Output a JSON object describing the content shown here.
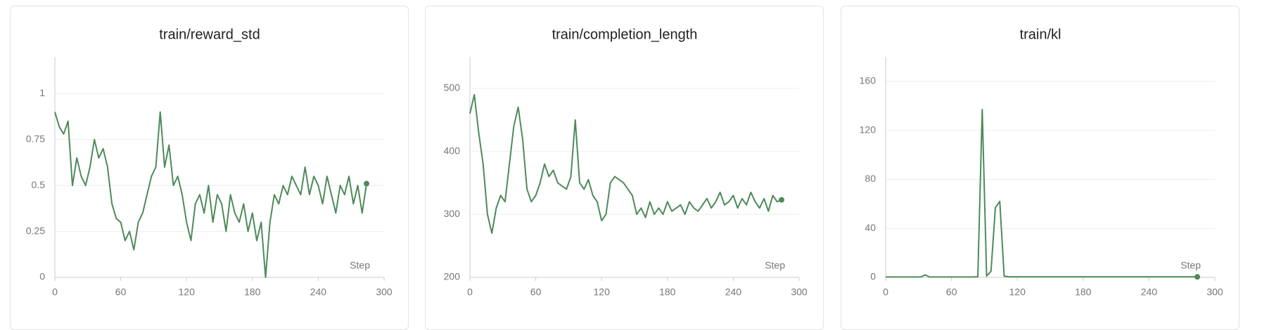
{
  "chart_data": [
    {
      "type": "line",
      "title": "train/reward_std",
      "x_label": "Step",
      "color": "#4e8a5a",
      "grid": true,
      "x": [
        0,
        4,
        8,
        12,
        16,
        20,
        24,
        28,
        32,
        36,
        40,
        44,
        48,
        52,
        56,
        60,
        64,
        68,
        72,
        76,
        80,
        84,
        88,
        92,
        96,
        100,
        104,
        108,
        112,
        116,
        120,
        124,
        128,
        132,
        136,
        140,
        144,
        148,
        152,
        156,
        160,
        164,
        168,
        172,
        176,
        180,
        184,
        188,
        192,
        196,
        200,
        204,
        208,
        212,
        216,
        220,
        224,
        228,
        232,
        236,
        240,
        244,
        248,
        252,
        256,
        260,
        264,
        268,
        272,
        276,
        280,
        284
      ],
      "values": [
        0.9,
        0.82,
        0.78,
        0.85,
        0.5,
        0.65,
        0.55,
        0.5,
        0.6,
        0.75,
        0.65,
        0.7,
        0.6,
        0.4,
        0.32,
        0.3,
        0.2,
        0.25,
        0.15,
        0.3,
        0.35,
        0.45,
        0.55,
        0.6,
        0.9,
        0.6,
        0.72,
        0.5,
        0.55,
        0.45,
        0.3,
        0.2,
        0.4,
        0.45,
        0.35,
        0.5,
        0.3,
        0.45,
        0.4,
        0.25,
        0.45,
        0.35,
        0.3,
        0.4,
        0.25,
        0.35,
        0.2,
        0.3,
        0,
        0.3,
        0.45,
        0.4,
        0.5,
        0.45,
        0.55,
        0.5,
        0.45,
        0.6,
        0.45,
        0.55,
        0.5,
        0.4,
        0.55,
        0.45,
        0.35,
        0.5,
        0.45,
        0.55,
        0.4,
        0.5,
        0.35,
        0.51
      ],
      "xlim": [
        0,
        300
      ],
      "xticks": [
        0,
        60,
        120,
        180,
        240,
        300
      ],
      "ylim": [
        0,
        1.2
      ],
      "yticks": [
        0,
        0.25,
        0.5,
        0.75,
        1
      ]
    },
    {
      "type": "line",
      "title": "train/completion_length",
      "x_label": "Step",
      "color": "#4e8a5a",
      "grid": true,
      "x": [
        0,
        4,
        8,
        12,
        16,
        20,
        24,
        28,
        32,
        36,
        40,
        44,
        48,
        52,
        56,
        60,
        64,
        68,
        72,
        76,
        80,
        84,
        88,
        92,
        96,
        100,
        104,
        108,
        112,
        116,
        120,
        124,
        128,
        132,
        136,
        140,
        144,
        148,
        152,
        156,
        160,
        164,
        168,
        172,
        176,
        180,
        184,
        188,
        192,
        196,
        200,
        204,
        208,
        212,
        216,
        220,
        224,
        228,
        232,
        236,
        240,
        244,
        248,
        252,
        256,
        260,
        264,
        268,
        272,
        276,
        280,
        284
      ],
      "values": [
        460,
        490,
        430,
        380,
        300,
        270,
        310,
        330,
        320,
        380,
        440,
        470,
        420,
        340,
        320,
        330,
        350,
        380,
        360,
        370,
        350,
        345,
        340,
        360,
        450,
        350,
        340,
        355,
        330,
        320,
        290,
        300,
        350,
        360,
        355,
        350,
        340,
        330,
        300,
        310,
        295,
        320,
        300,
        310,
        300,
        320,
        305,
        310,
        315,
        300,
        320,
        310,
        305,
        315,
        325,
        310,
        320,
        335,
        315,
        320,
        330,
        310,
        325,
        315,
        335,
        320,
        310,
        325,
        305,
        330,
        320,
        323
      ],
      "xlim": [
        0,
        300
      ],
      "xticks": [
        0,
        60,
        120,
        180,
        240,
        300
      ],
      "ylim": [
        200,
        550
      ],
      "yticks": [
        200,
        300,
        400,
        500
      ]
    },
    {
      "type": "line",
      "title": "train/kl",
      "x_label": "Step",
      "color": "#4e8a5a",
      "grid": true,
      "x": [
        0,
        4,
        8,
        12,
        16,
        20,
        24,
        28,
        32,
        36,
        40,
        44,
        48,
        52,
        56,
        60,
        64,
        68,
        72,
        76,
        80,
        84,
        88,
        92,
        96,
        100,
        104,
        108,
        112,
        116,
        120,
        124,
        128,
        132,
        136,
        140,
        144,
        148,
        152,
        156,
        160,
        164,
        168,
        172,
        176,
        180,
        184,
        188,
        192,
        196,
        200,
        204,
        208,
        212,
        216,
        220,
        224,
        228,
        232,
        236,
        240,
        244,
        248,
        252,
        256,
        260,
        264,
        268,
        272,
        276,
        280,
        284
      ],
      "values": [
        0.3,
        0.3,
        0.3,
        0.3,
        0.3,
        0.3,
        0.3,
        0.3,
        0.3,
        2,
        0.3,
        0.3,
        0.3,
        0.3,
        0.3,
        0.3,
        0.3,
        0.3,
        0.3,
        0.3,
        0.3,
        0.5,
        137,
        1,
        5,
        57,
        62,
        1,
        0.5,
        0.4,
        0.4,
        0.4,
        0.4,
        0.4,
        0.4,
        0.4,
        0.4,
        0.4,
        0.4,
        0.4,
        0.4,
        0.4,
        0.4,
        0.4,
        0.4,
        0.4,
        0.4,
        0.4,
        0.4,
        0.4,
        0.4,
        0.4,
        0.4,
        0.4,
        0.4,
        0.4,
        0.4,
        0.4,
        0.4,
        0.4,
        0.4,
        0.4,
        0.4,
        0.4,
        0.4,
        0.4,
        0.4,
        0.4,
        0.4,
        0.4,
        0.4,
        0.4
      ],
      "xlim": [
        0,
        300
      ],
      "xticks": [
        0,
        60,
        120,
        180,
        240,
        300
      ],
      "ylim": [
        0,
        180
      ],
      "yticks": [
        0,
        40,
        80,
        120,
        160
      ]
    }
  ]
}
